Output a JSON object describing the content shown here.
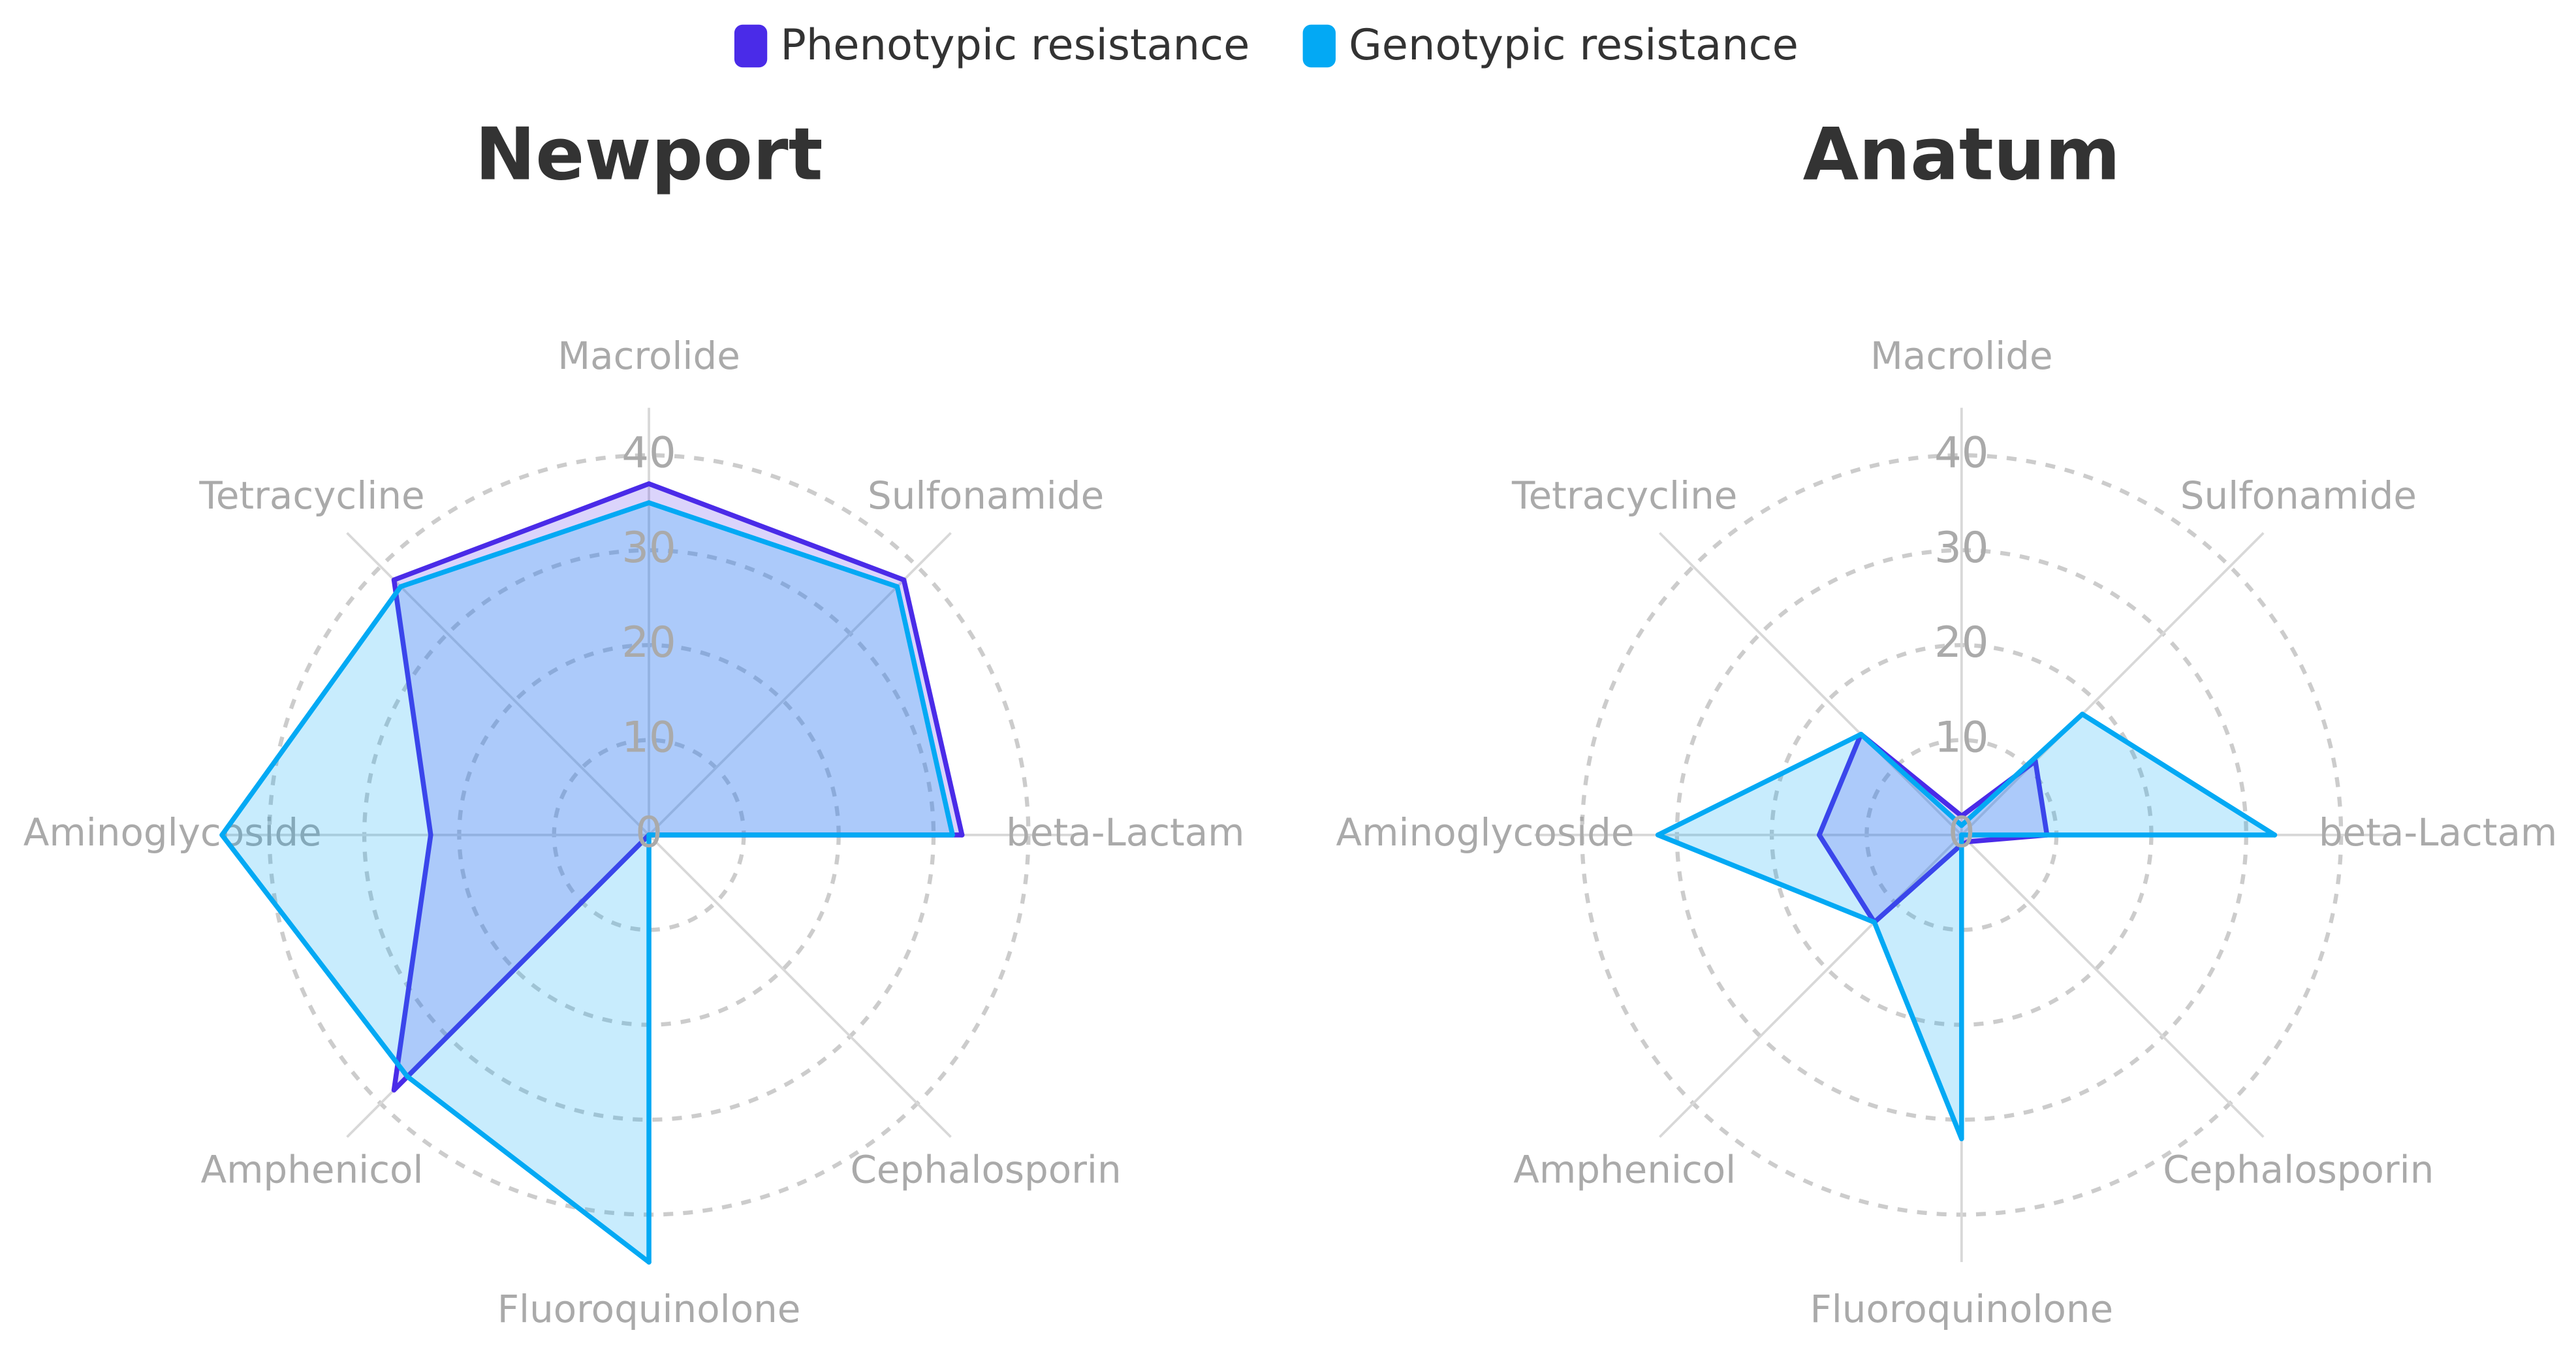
{
  "chart_data": [
    {
      "type": "radar",
      "title": "Newport",
      "categories": [
        "Macrolide",
        "Sulfonamide",
        "beta-Lactam",
        "Cephalosporin",
        "Fluoroquinolone",
        "Amphenicol",
        "Aminoglycoside",
        "Tetracycline"
      ],
      "series": [
        {
          "name": "Phenotypic resistance",
          "color": "#4a2be8",
          "values": [
            37,
            38,
            33,
            0,
            0,
            38,
            23,
            38
          ]
        },
        {
          "name": "Genotypic resistance",
          "color": "#03a9f4",
          "values": [
            35,
            37,
            32,
            0,
            45,
            36,
            45,
            37
          ]
        }
      ],
      "ylim": [
        0,
        45
      ],
      "yticks": [
        0,
        10,
        20,
        30,
        40
      ],
      "grid": true
    },
    {
      "type": "radar",
      "title": "Anatum",
      "categories": [
        "Macrolide",
        "Sulfonamide",
        "beta-Lactam",
        "Cephalosporin",
        "Fluoroquinolone",
        "Amphenicol",
        "Aminoglycoside",
        "Tetracycline"
      ],
      "series": [
        {
          "name": "Phenotypic resistance",
          "color": "#4a2be8",
          "values": [
            2,
            11,
            9,
            1,
            1,
            13,
            15,
            15
          ]
        },
        {
          "name": "Genotypic resistance",
          "color": "#03a9f4",
          "values": [
            1,
            18,
            33,
            0,
            32,
            13,
            32,
            15
          ]
        }
      ],
      "ylim": [
        0,
        45
      ],
      "yticks": [
        0,
        10,
        20,
        30,
        40
      ],
      "grid": true
    }
  ]
}
